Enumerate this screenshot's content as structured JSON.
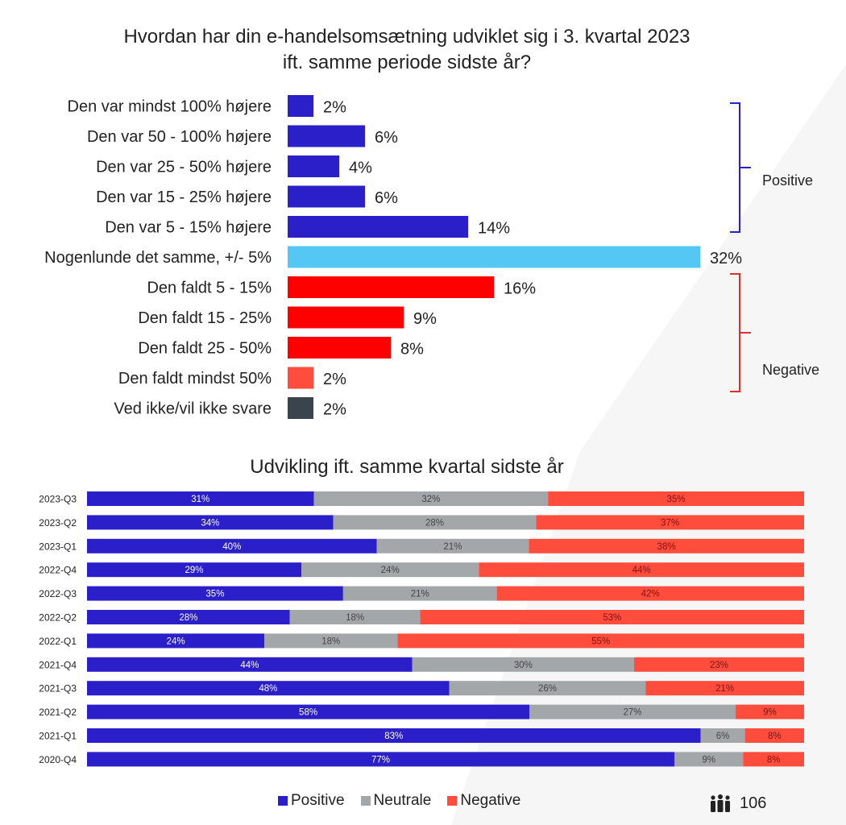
{
  "colors": {
    "positive": "#2a1fc9",
    "neutral": "#a3a7aa",
    "neutral_bar": "#55c7f5",
    "negative": "#ff0000",
    "negative_light": "#ff4d3d",
    "dontknow": "#3a444c",
    "bracket_pos": "#2a1fc9",
    "bracket_neg": "#d93030"
  },
  "top_title_line1": "Hvordan har din e-handelsomsætning udviklet sig i 3. kvartal 2023",
  "top_title_line2": "ift. samme periode sidste år?",
  "bottom_title": "Udvikling ift. samme kvartal sidste år",
  "bracket_labels": {
    "positive": "Positive",
    "negative": "Negative"
  },
  "legend": {
    "positive": "Positive",
    "neutral": "Neutrale",
    "negative": "Negative"
  },
  "page_number": "106",
  "chart_data": [
    {
      "type": "bar",
      "orientation": "horizontal",
      "categories": [
        "Den var mindst 100% højere",
        "Den var 50 - 100% højere",
        "Den var 25 - 50% højere",
        "Den var 15 - 25% højere",
        "Den var 5 - 15% højere",
        "Nogenlunde det samme, +/- 5%",
        "Den faldt 5 - 15%",
        "Den faldt 15 - 25%",
        "Den faldt 25 - 50%",
        "Den faldt mindst 50%",
        "Ved ikke/vil ikke svare"
      ],
      "values": [
        2,
        6,
        4,
        6,
        14,
        32,
        16,
        9,
        8,
        2,
        2
      ],
      "labels": [
        "2%",
        "6%",
        "4%",
        "6%",
        "14%",
        "32%",
        "16%",
        "9%",
        "8%",
        "2%",
        "2%"
      ],
      "colors": [
        "positive",
        "positive",
        "positive",
        "positive",
        "positive",
        "neutral_bar",
        "negative",
        "negative",
        "negative",
        "negative_light",
        "dontknow"
      ]
    },
    {
      "type": "bar",
      "orientation": "horizontal",
      "stacked": true,
      "percent": true,
      "categories": [
        "2023-Q3",
        "2023-Q2",
        "2023-Q1",
        "2022-Q4",
        "2022-Q3",
        "2022-Q2",
        "2022-Q1",
        "2021-Q4",
        "2021-Q3",
        "2021-Q2",
        "2021-Q1",
        "2020-Q4"
      ],
      "series": [
        {
          "name": "Positive",
          "values": [
            31,
            34,
            40,
            29,
            35,
            28,
            24,
            44,
            48,
            58,
            83,
            77
          ]
        },
        {
          "name": "Neutrale",
          "values": [
            32,
            28,
            21,
            24,
            21,
            18,
            18,
            30,
            26,
            27,
            6,
            9
          ]
        },
        {
          "name": "Negative",
          "values": [
            35,
            37,
            38,
            44,
            42,
            53,
            55,
            23,
            21,
            9,
            8,
            8
          ]
        }
      ]
    }
  ]
}
